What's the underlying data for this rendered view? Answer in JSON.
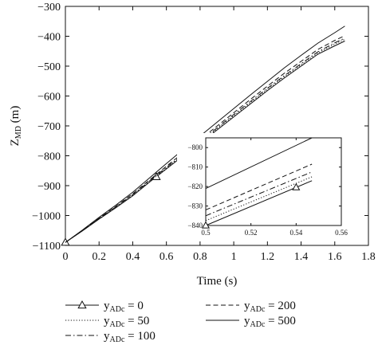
{
  "chart_data": {
    "type": "line",
    "xlabel": "Time (s)",
    "ylabel": {
      "main": "Z",
      "sub": "MD",
      "unit": " (m)"
    },
    "xlim": [
      0,
      1.8
    ],
    "ylim": [
      -1100,
      -300
    ],
    "xticks": [
      0,
      0.2,
      0.4,
      0.6,
      0.8,
      1,
      1.2,
      1.4,
      1.6,
      1.8
    ],
    "xtick_labels": [
      "0",
      "0.2",
      "0.4",
      "0.6",
      "0.8",
      "1",
      "1.2",
      "1.4",
      "1.6",
      "1.8"
    ],
    "yticks": [
      -1100,
      -1000,
      -900,
      -800,
      -700,
      -600,
      -500,
      -400,
      -300
    ],
    "ytick_labels": [
      "−1100",
      "−1000",
      "−900",
      "−800",
      "−700",
      "−600",
      "−500",
      "−400",
      "−300"
    ],
    "grid": false,
    "legend_position": "bottom",
    "series": [
      {
        "name": {
          "var": "y",
          "sub": "ADc",
          "value": " = 0"
        },
        "style": "solid-triangle",
        "marker": "triangle",
        "marker_x": [
          0,
          0.54
        ],
        "x": [
          0,
          0.1,
          0.2,
          0.3,
          0.4,
          0.5,
          0.6,
          0.7,
          0.8,
          0.9,
          1.0,
          1.1,
          1.2,
          1.3,
          1.4,
          1.5,
          1.6,
          1.66
        ],
        "y": [
          -1090,
          -1052,
          -1012,
          -974,
          -934,
          -888,
          -844,
          -800,
          -758,
          -714,
          -670,
          -626,
          -582,
          -540,
          -500,
          -460,
          -432,
          -416
        ]
      },
      {
        "name": {
          "var": "y",
          "sub": "ADc",
          "value": " = 50"
        },
        "style": "dotted",
        "x": [
          0,
          0.1,
          0.2,
          0.3,
          0.4,
          0.5,
          0.6,
          0.7,
          0.8,
          0.9,
          1.0,
          1.1,
          1.2,
          1.3,
          1.4,
          1.5,
          1.6,
          1.66
        ],
        "y": [
          -1090,
          -1051,
          -1011,
          -972,
          -932,
          -886,
          -841,
          -797,
          -754,
          -710,
          -666,
          -622,
          -578,
          -536,
          -496,
          -456,
          -426,
          -410
        ]
      },
      {
        "name": {
          "var": "y",
          "sub": "ADc",
          "value": " = 100"
        },
        "style": "dashdot",
        "x": [
          0,
          0.1,
          0.2,
          0.3,
          0.4,
          0.5,
          0.6,
          0.7,
          0.8,
          0.9,
          1.0,
          1.1,
          1.2,
          1.3,
          1.4,
          1.5,
          1.6,
          1.66
        ],
        "y": [
          -1090,
          -1051,
          -1010,
          -971,
          -930,
          -884,
          -839,
          -795,
          -751,
          -707,
          -662,
          -618,
          -574,
          -532,
          -492,
          -452,
          -422,
          -406
        ]
      },
      {
        "name": {
          "var": "y",
          "sub": "ADc",
          "value": " = 200"
        },
        "style": "dashed",
        "x": [
          0,
          0.1,
          0.2,
          0.3,
          0.4,
          0.5,
          0.6,
          0.7,
          0.8,
          0.9,
          1.0,
          1.1,
          1.2,
          1.3,
          1.4,
          1.5,
          1.6,
          1.66
        ],
        "y": [
          -1090,
          -1050,
          -1009,
          -969,
          -927,
          -881,
          -835,
          -790,
          -746,
          -701,
          -656,
          -611,
          -567,
          -524,
          -484,
          -444,
          -414,
          -398
        ]
      },
      {
        "name": {
          "var": "y",
          "sub": "ADc",
          "value": " = 500"
        },
        "style": "solid",
        "x": [
          0,
          0.1,
          0.2,
          0.3,
          0.4,
          0.5,
          0.6,
          0.7,
          0.8,
          0.9,
          1.0,
          1.1,
          1.2,
          1.3,
          1.4,
          1.5,
          1.6,
          1.66
        ],
        "y": [
          -1090,
          -1049,
          -1006,
          -965,
          -922,
          -874,
          -826,
          -779,
          -734,
          -688,
          -642,
          -596,
          -551,
          -506,
          -464,
          -423,
          -388,
          -366
        ]
      }
    ],
    "inset": {
      "xlim": [
        0.5,
        0.56
      ],
      "ylim": [
        -840,
        -795
      ],
      "xticks": [
        0.5,
        0.52,
        0.54,
        0.56
      ],
      "xtick_labels": [
        "0.5",
        "0.52",
        "0.54",
        "0.56"
      ],
      "yticks": [
        -840,
        -830,
        -820,
        -810,
        -800
      ],
      "ytick_labels": [
        "−840",
        "−830",
        "−820",
        "−810",
        "−800"
      ],
      "series": [
        {
          "style": "solid-triangle",
          "marker": "triangle",
          "marker_x": [
            0.5,
            0.54
          ],
          "x": [
            0.5,
            0.547
          ],
          "y": [
            -840,
            -817
          ]
        },
        {
          "style": "dotted",
          "x": [
            0.5,
            0.547
          ],
          "y": [
            -837.5,
            -815
          ]
        },
        {
          "style": "dashdot",
          "x": [
            0.5,
            0.547
          ],
          "y": [
            -835,
            -812.5
          ]
        },
        {
          "style": "dashed",
          "x": [
            0.5,
            0.547
          ],
          "y": [
            -832,
            -808.5
          ]
        },
        {
          "style": "solid",
          "x": [
            0.5,
            0.547
          ],
          "y": [
            -821,
            -795
          ]
        }
      ]
    }
  }
}
